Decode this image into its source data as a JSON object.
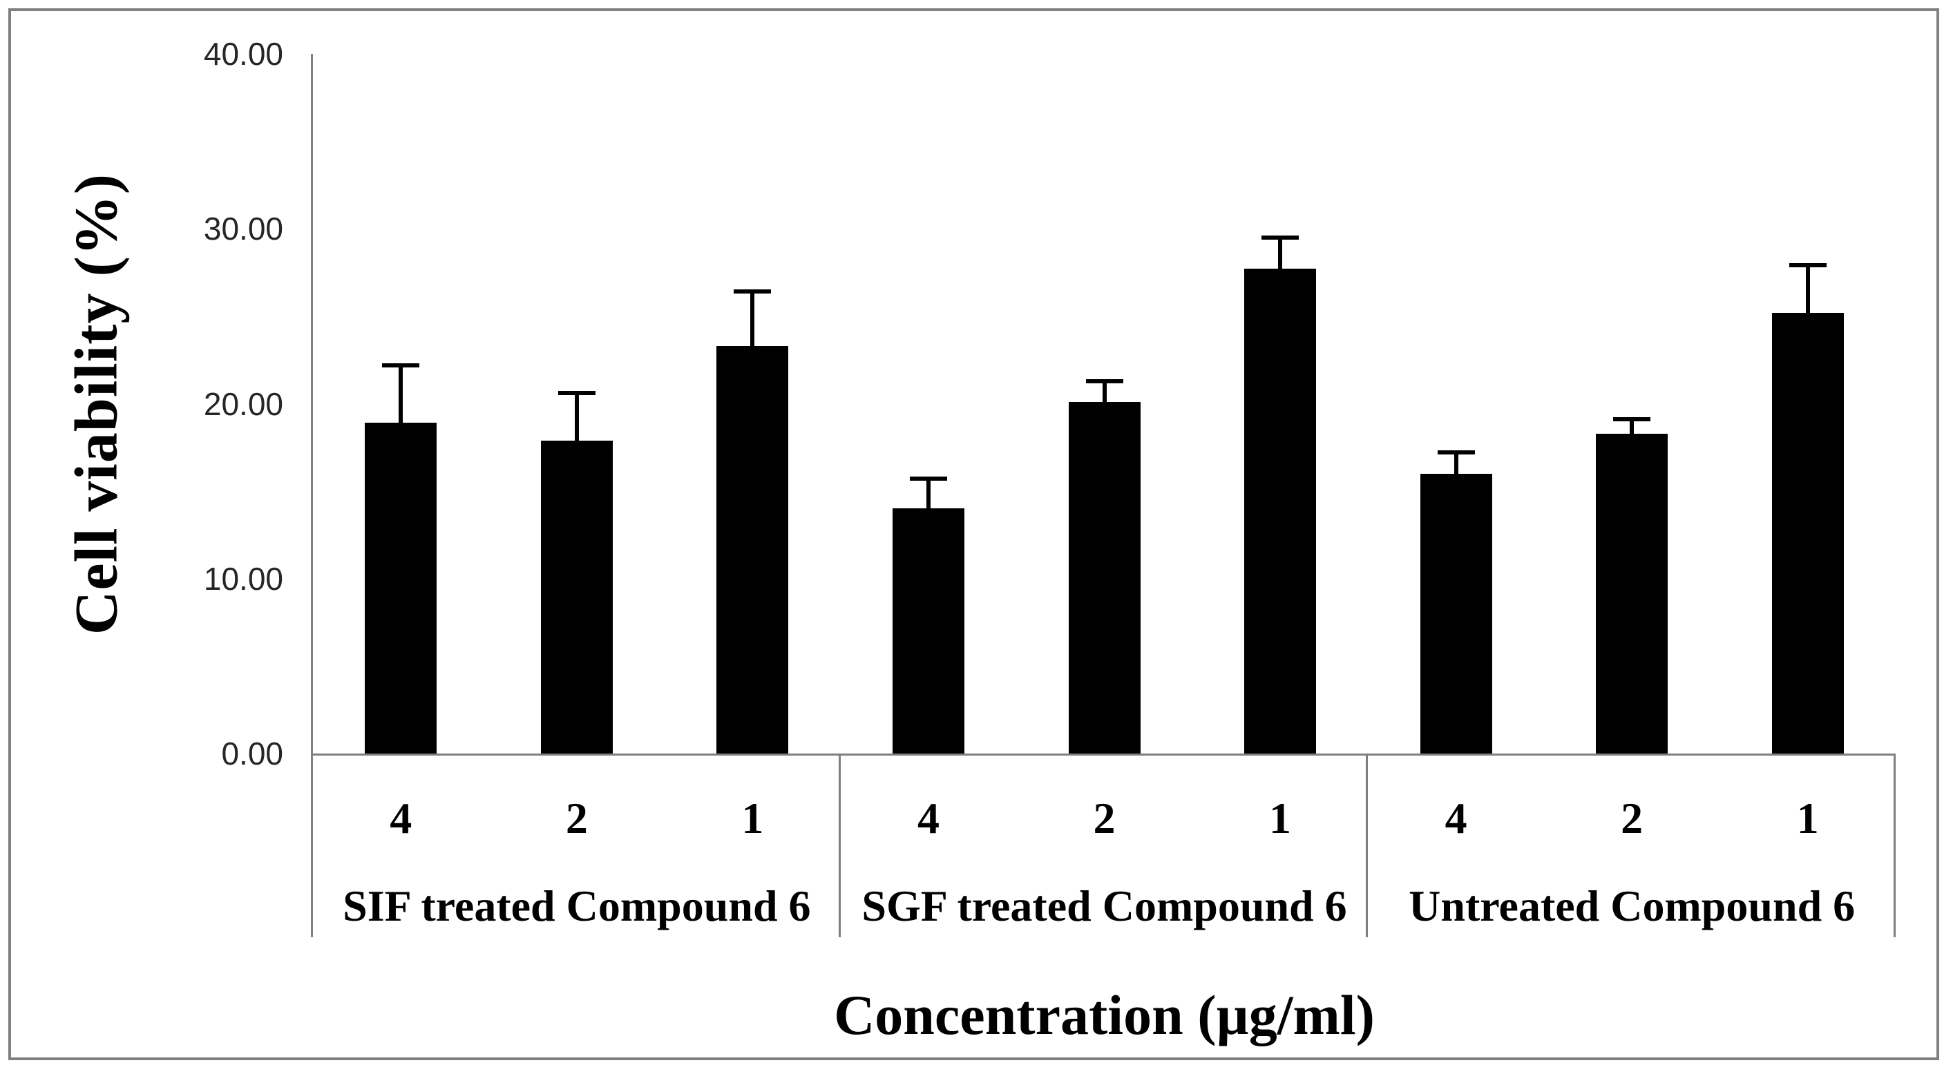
{
  "figure": {
    "background": "#ffffff",
    "frame_color": "#808080"
  },
  "chart_data": {
    "type": "bar",
    "title": "",
    "ylabel": "Cell viability (%)",
    "xlabel": "Concentration (µg/ml)",
    "ylim": [
      0,
      40
    ],
    "grid": false,
    "legend_position": "none",
    "bar_color": "#000000",
    "axis_color": "#7f7f7f",
    "error_bar_color": "#000000",
    "yticks": [
      {
        "value": 40,
        "label": "40.00"
      },
      {
        "value": 30,
        "label": "30.00"
      },
      {
        "value": 20,
        "label": "20.00"
      },
      {
        "value": 10,
        "label": "10.00"
      },
      {
        "value": 0,
        "label": "0.00"
      }
    ],
    "groups": [
      {
        "label": "SIF treated Compound 6",
        "bars": [
          {
            "category": "4",
            "value": 18.9,
            "error_plus": 3.3
          },
          {
            "category": "2",
            "value": 17.9,
            "error_plus": 2.7
          },
          {
            "category": "1",
            "value": 23.3,
            "error_plus": 3.1
          }
        ]
      },
      {
        "label": "SGF treated Compound 6",
        "bars": [
          {
            "category": "4",
            "value": 14.0,
            "error_plus": 1.7
          },
          {
            "category": "2",
            "value": 20.1,
            "error_plus": 1.2
          },
          {
            "category": "1",
            "value": 27.7,
            "error_plus": 1.8
          }
        ]
      },
      {
        "label": "Untreated Compound 6",
        "bars": [
          {
            "category": "4",
            "value": 16.0,
            "error_plus": 1.2
          },
          {
            "category": "2",
            "value": 18.3,
            "error_plus": 0.8
          },
          {
            "category": "1",
            "value": 25.2,
            "error_plus": 2.7
          }
        ]
      }
    ]
  }
}
